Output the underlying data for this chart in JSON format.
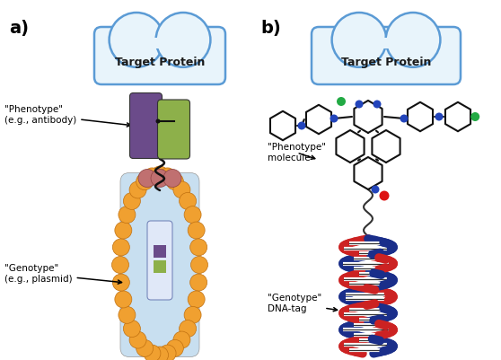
{
  "background_color": "#ffffff",
  "label_a": "a)",
  "label_b": "b)",
  "target_protein_text": "Target Protein",
  "phenotype_a_line1": "\"Phenotype\"",
  "phenotype_a_line2": "(e.g., antibody)",
  "genotype_a_line1": "\"Genotype\"",
  "genotype_a_line2": "(e.g., plasmid)",
  "phenotype_b_line1": "\"Phenotype\"",
  "phenotype_b_line2": "molecule",
  "genotype_b_line1": "\"Genotype\"",
  "genotype_b_line2": "DNA-tag",
  "protein_fill": "#e8f4fb",
  "protein_outline": "#5b9bd5",
  "purple_color": "#6B4B8A",
  "green_color": "#8DB04A",
  "orange_bead": "#F0A030",
  "pink_color": "#C07070",
  "cell_body_color": "#C8DFF0",
  "dna_blue": "#1A2E8A",
  "dna_red": "#CC2222",
  "molecule_black": "#111111",
  "atom_blue": "#2244BB",
  "atom_green": "#22AA44",
  "atom_red": "#DD1111"
}
